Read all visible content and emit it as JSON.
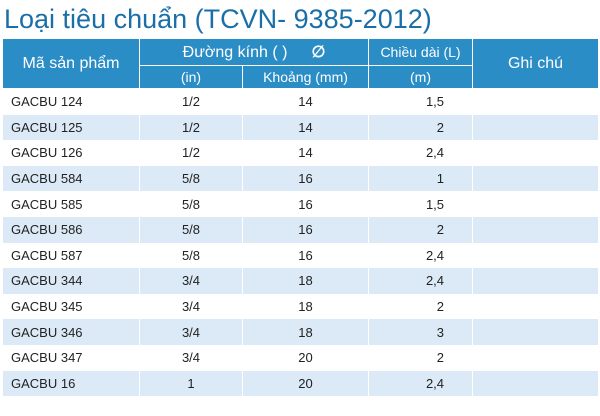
{
  "title": "Loại tiêu chuẩn (TCVN- 9385-2012)",
  "headers": {
    "code": "Mã sản phẩm",
    "diameter": "Đường kính  (   )",
    "diameter_symbol": "∅",
    "length": "Chiều dài (L)",
    "note": "Ghi chú",
    "in_unit": "(in)",
    "mm_unit": "Khoảng (mm)",
    "m_unit": "(m)"
  },
  "rows": [
    {
      "code": "GACBU 124",
      "in": "1/2",
      "mm": "14",
      "len": "1,5",
      "note": ""
    },
    {
      "code": "GACBU 125",
      "in": "1/2",
      "mm": "14",
      "len": "2",
      "note": ""
    },
    {
      "code": "GACBU 126",
      "in": "1/2",
      "mm": "14",
      "len": "2,4",
      "note": ""
    },
    {
      "code": "GACBU 584",
      "in": "5/8",
      "mm": "16",
      "len": "1",
      "note": ""
    },
    {
      "code": "GACBU 585",
      "in": "5/8",
      "mm": "16",
      "len": "1,5",
      "note": ""
    },
    {
      "code": "GACBU 586",
      "in": "5/8",
      "mm": "16",
      "len": "2",
      "note": ""
    },
    {
      "code": "GACBU 587",
      "in": "5/8",
      "mm": "16",
      "len": "2,4",
      "note": ""
    },
    {
      "code": "GACBU 344",
      "in": "3/4",
      "mm": "18",
      "len": "2,4",
      "note": ""
    },
    {
      "code": "GACBU 345",
      "in": "3/4",
      "mm": "18",
      "len": "2",
      "note": ""
    },
    {
      "code": "GACBU 346",
      "in": "3/4",
      "mm": "18",
      "len": "3",
      "note": ""
    },
    {
      "code": "GACBU 347",
      "in": "3/4",
      "mm": "20",
      "len": "2",
      "note": ""
    },
    {
      "code": "GACBU 16",
      "in": "1",
      "mm": "20",
      "len": "2,4",
      "note": ""
    }
  ],
  "colors": {
    "title": "#1a6fa8",
    "header_bg": "#2a8dc6",
    "stripe": "#dbeaf6"
  }
}
